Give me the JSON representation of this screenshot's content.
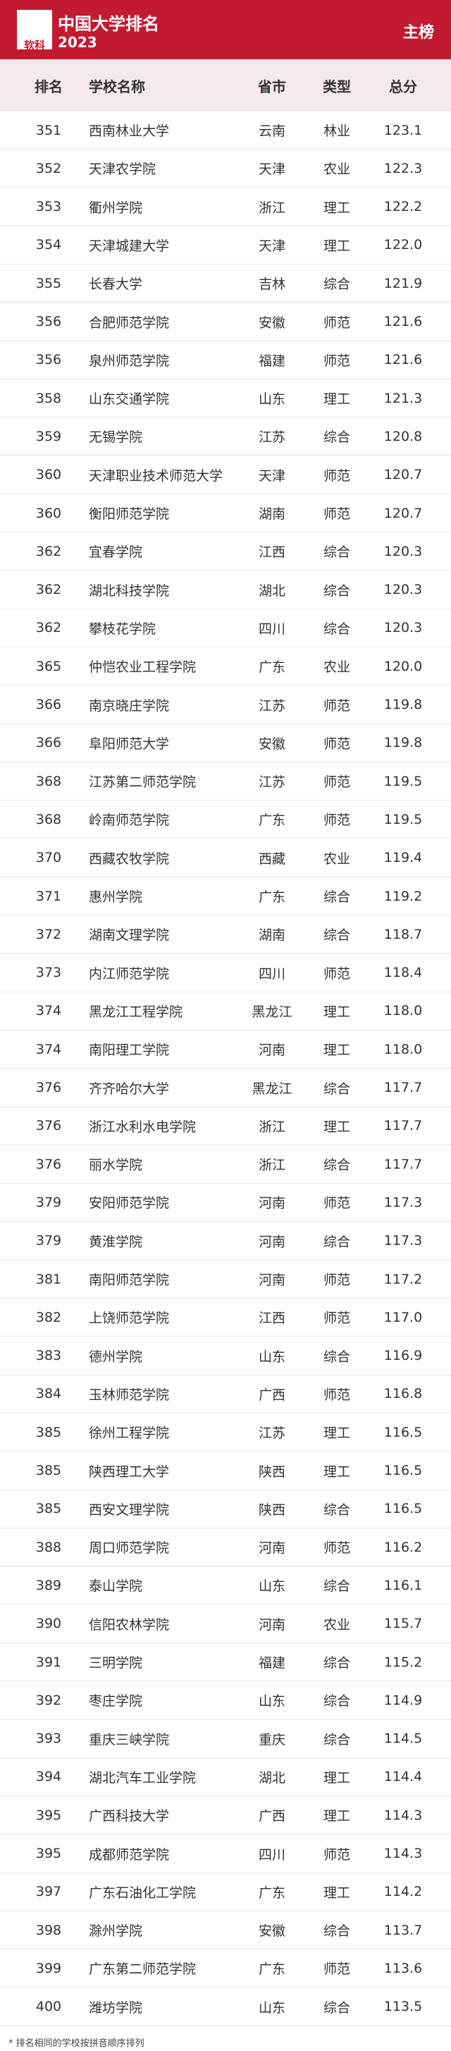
{
  "header": {
    "logo": "软科",
    "title": "中国大学排名",
    "year": "2023",
    "tag": "主榜"
  },
  "table": {
    "columns": [
      "排名",
      "学校名称",
      "省市",
      "类型",
      "总分"
    ],
    "rows": [
      [
        "351",
        "西南林业大学",
        "云南",
        "林业",
        "123.1"
      ],
      [
        "352",
        "天津农学院",
        "天津",
        "农业",
        "122.3"
      ],
      [
        "353",
        "衢州学院",
        "浙江",
        "理工",
        "122.2"
      ],
      [
        "354",
        "天津城建大学",
        "天津",
        "理工",
        "122.0"
      ],
      [
        "355",
        "长春大学",
        "吉林",
        "综合",
        "121.9"
      ],
      [
        "356",
        "合肥师范学院",
        "安徽",
        "师范",
        "121.6"
      ],
      [
        "356",
        "泉州师范学院",
        "福建",
        "师范",
        "121.6"
      ],
      [
        "358",
        "山东交通学院",
        "山东",
        "理工",
        "121.3"
      ],
      [
        "359",
        "无锡学院",
        "江苏",
        "综合",
        "120.8"
      ],
      [
        "360",
        "天津职业技术师范大学",
        "天津",
        "师范",
        "120.7"
      ],
      [
        "360",
        "衡阳师范学院",
        "湖南",
        "师范",
        "120.7"
      ],
      [
        "362",
        "宜春学院",
        "江西",
        "综合",
        "120.3"
      ],
      [
        "362",
        "湖北科技学院",
        "湖北",
        "综合",
        "120.3"
      ],
      [
        "362",
        "攀枝花学院",
        "四川",
        "综合",
        "120.3"
      ],
      [
        "365",
        "仲恺农业工程学院",
        "广东",
        "农业",
        "120.0"
      ],
      [
        "366",
        "南京晓庄学院",
        "江苏",
        "师范",
        "119.8"
      ],
      [
        "366",
        "阜阳师范大学",
        "安徽",
        "师范",
        "119.8"
      ],
      [
        "368",
        "江苏第二师范学院",
        "江苏",
        "师范",
        "119.5"
      ],
      [
        "368",
        "岭南师范学院",
        "广东",
        "师范",
        "119.5"
      ],
      [
        "370",
        "西藏农牧学院",
        "西藏",
        "农业",
        "119.4"
      ],
      [
        "371",
        "惠州学院",
        "广东",
        "综合",
        "119.2"
      ],
      [
        "372",
        "湖南文理学院",
        "湖南",
        "综合",
        "118.7"
      ],
      [
        "373",
        "内江师范学院",
        "四川",
        "师范",
        "118.4"
      ],
      [
        "374",
        "黑龙江工程学院",
        "黑龙江",
        "理工",
        "118.0"
      ],
      [
        "374",
        "南阳理工学院",
        "河南",
        "理工",
        "118.0"
      ],
      [
        "376",
        "齐齐哈尔大学",
        "黑龙江",
        "综合",
        "117.7"
      ],
      [
        "376",
        "浙江水利水电学院",
        "浙江",
        "理工",
        "117.7"
      ],
      [
        "376",
        "丽水学院",
        "浙江",
        "综合",
        "117.7"
      ],
      [
        "379",
        "安阳师范学院",
        "河南",
        "师范",
        "117.3"
      ],
      [
        "379",
        "黄淮学院",
        "河南",
        "综合",
        "117.3"
      ],
      [
        "381",
        "南阳师范学院",
        "河南",
        "师范",
        "117.2"
      ],
      [
        "382",
        "上饶师范学院",
        "江西",
        "师范",
        "117.0"
      ],
      [
        "383",
        "德州学院",
        "山东",
        "综合",
        "116.9"
      ],
      [
        "384",
        "玉林师范学院",
        "广西",
        "师范",
        "116.8"
      ],
      [
        "385",
        "徐州工程学院",
        "江苏",
        "理工",
        "116.5"
      ],
      [
        "385",
        "陕西理工大学",
        "陕西",
        "理工",
        "116.5"
      ],
      [
        "385",
        "西安文理学院",
        "陕西",
        "综合",
        "116.5"
      ],
      [
        "388",
        "周口师范学院",
        "河南",
        "师范",
        "116.2"
      ],
      [
        "389",
        "泰山学院",
        "山东",
        "综合",
        "116.1"
      ],
      [
        "390",
        "信阳农林学院",
        "河南",
        "农业",
        "115.7"
      ],
      [
        "391",
        "三明学院",
        "福建",
        "综合",
        "115.2"
      ],
      [
        "392",
        "枣庄学院",
        "山东",
        "综合",
        "114.9"
      ],
      [
        "393",
        "重庆三峡学院",
        "重庆",
        "综合",
        "114.5"
      ],
      [
        "394",
        "湖北汽车工业学院",
        "湖北",
        "理工",
        "114.4"
      ],
      [
        "395",
        "广西科技大学",
        "广西",
        "理工",
        "114.3"
      ],
      [
        "395",
        "成都师范学院",
        "四川",
        "师范",
        "114.3"
      ],
      [
        "397",
        "广东石油化工学院",
        "广东",
        "理工",
        "114.2"
      ],
      [
        "398",
        "滁州学院",
        "安徽",
        "综合",
        "113.7"
      ],
      [
        "399",
        "广东第二师范学院",
        "广东",
        "师范",
        "113.6"
      ],
      [
        "400",
        "潍坊学院",
        "山东",
        "综合",
        "113.5"
      ]
    ]
  },
  "footer": {
    "note": "* 排名相同的学校按拼音顺序排列"
  }
}
